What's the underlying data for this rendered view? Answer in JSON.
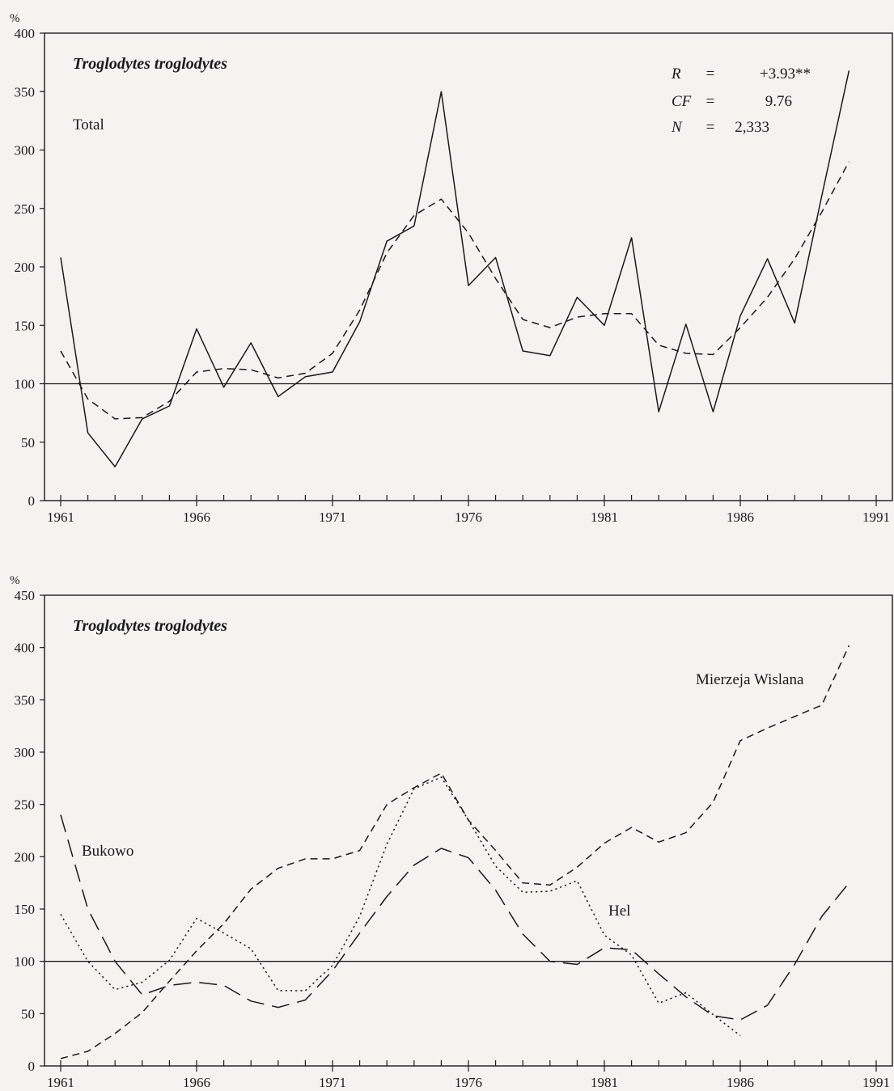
{
  "chart_data": [
    {
      "type": "line",
      "title": "Troglodytes troglodytes",
      "subtitle": "Total",
      "ylabel": "%",
      "xlabel": "",
      "xlim": [
        1961,
        1991
      ],
      "ylim": [
        0,
        400
      ],
      "xticks": [
        1961,
        1966,
        1971,
        1976,
        1981,
        1986,
        1991
      ],
      "yticks": [
        0,
        50,
        100,
        150,
        200,
        250,
        300,
        350,
        400
      ],
      "reference_line": 100,
      "stats": [
        {
          "label": "R",
          "eq": "=",
          "value": "+3.93**"
        },
        {
          "label": "CF",
          "eq": "=",
          "value": "9.76"
        },
        {
          "label": "N",
          "eq": "=",
          "value": "2,333"
        }
      ],
      "series": [
        {
          "style": "solid",
          "x": [
            1961,
            1962,
            1963,
            1964,
            1965,
            1966,
            1967,
            1968,
            1969,
            1970,
            1971,
            1972,
            1973,
            1974,
            1975,
            1976,
            1977,
            1978,
            1979,
            1980,
            1981,
            1982,
            1983,
            1984,
            1985,
            1986,
            1987,
            1988,
            1989,
            1990
          ],
          "values": [
            208,
            58,
            29,
            70,
            81,
            147,
            97,
            135,
            89,
            106,
            110,
            153,
            222,
            235,
            350,
            184,
            208,
            128,
            124,
            174,
            150,
            225,
            76,
            151,
            76,
            158,
            207,
            152,
            261,
            368
          ]
        },
        {
          "style": "dashed",
          "x": [
            1961,
            1962,
            1963,
            1964,
            1965,
            1966,
            1967,
            1968,
            1969,
            1970,
            1971,
            1972,
            1973,
            1974,
            1975,
            1976,
            1977,
            1978,
            1979,
            1980,
            1981,
            1982,
            1983,
            1984,
            1985,
            1986,
            1987,
            1988,
            1989,
            1990
          ],
          "values": [
            128,
            87,
            70,
            71,
            85,
            110,
            113,
            112,
            105,
            109,
            126,
            163,
            212,
            244,
            258,
            229,
            190,
            155,
            148,
            157,
            160,
            160,
            133,
            126,
            125,
            148,
            174,
            207,
            247,
            290
          ]
        }
      ]
    },
    {
      "type": "line",
      "title": "Troglodytes troglodytes",
      "ylabel": "%",
      "xlabel": "",
      "xlim": [
        1961,
        1991
      ],
      "ylim": [
        0,
        450
      ],
      "xticks": [
        1961,
        1966,
        1971,
        1976,
        1981,
        1986,
        1991
      ],
      "yticks": [
        0,
        50,
        100,
        150,
        200,
        250,
        300,
        350,
        400,
        450
      ],
      "reference_line": 100,
      "series": [
        {
          "name": "Bukowo",
          "style": "long-dash",
          "x": [
            1961,
            1962,
            1963,
            1964,
            1965,
            1966,
            1967,
            1968,
            1969,
            1970,
            1971,
            1972,
            1973,
            1974,
            1975,
            1976,
            1977,
            1978,
            1979,
            1980,
            1981,
            1982,
            1983,
            1984,
            1985,
            1986,
            1987,
            1988,
            1989,
            1990
          ],
          "values": [
            240,
            150,
            100,
            68,
            77,
            80,
            77,
            62,
            56,
            63,
            91,
            127,
            162,
            192,
            208,
            199,
            168,
            126,
            100,
            97,
            113,
            111,
            88,
            66,
            48,
            44,
            58,
            97,
            143,
            175
          ]
        },
        {
          "name": "Hel",
          "style": "dotted",
          "x": [
            1961,
            1962,
            1963,
            1964,
            1965,
            1966,
            1967,
            1968,
            1969,
            1970,
            1971,
            1972,
            1973,
            1974,
            1975,
            1976,
            1977,
            1978,
            1979,
            1980,
            1981,
            1982,
            1983,
            1984,
            1985,
            1986
          ],
          "values": [
            145,
            100,
            73,
            80,
            101,
            141,
            127,
            112,
            72,
            72,
            96,
            143,
            212,
            265,
            276,
            235,
            191,
            166,
            167,
            177,
            125,
            106,
            60,
            70,
            49,
            29
          ]
        },
        {
          "name": "Mierzeja Wislana",
          "style": "dashed",
          "x": [
            1961,
            1962,
            1963,
            1964,
            1965,
            1966,
            1967,
            1968,
            1969,
            1970,
            1971,
            1972,
            1973,
            1974,
            1975,
            1976,
            1977,
            1978,
            1979,
            1980,
            1981,
            1982,
            1983,
            1984,
            1985,
            1986,
            1987,
            1988,
            1989,
            1990
          ],
          "values": [
            7,
            14,
            31,
            51,
            81,
            110,
            136,
            169,
            189,
            198,
            198,
            206,
            250,
            266,
            280,
            235,
            206,
            175,
            173,
            190,
            213,
            228,
            214,
            223,
            252,
            311,
            323,
            334,
            345,
            402
          ]
        }
      ]
    }
  ]
}
